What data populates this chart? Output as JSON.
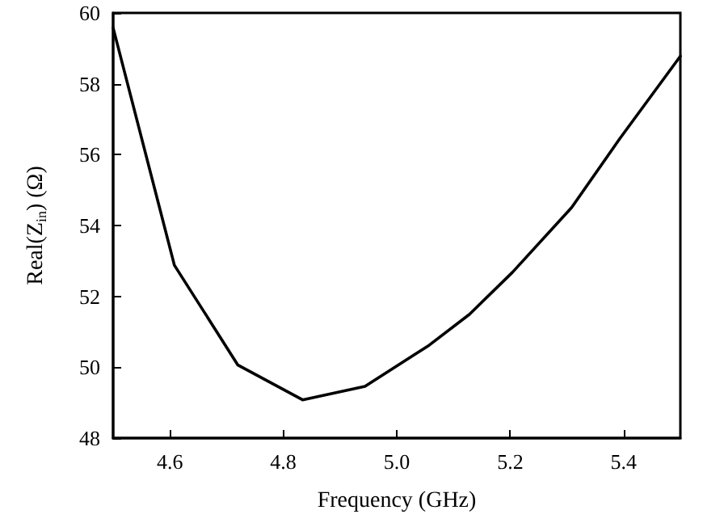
{
  "chart_data": {
    "type": "line",
    "xlabel": "Frequency (GHz)",
    "ylabel": "Real(Z$_{in}$) (Ω)",
    "x": [
      4.5,
      4.608,
      4.72,
      4.834,
      4.944,
      5.057,
      5.128,
      5.204,
      5.308,
      5.394,
      5.5
    ],
    "series": [
      {
        "color": "#000000",
        "values": [
          59.58,
          52.88,
          50.06,
          49.08,
          49.46,
          50.62,
          51.49,
          52.68,
          54.5,
          56.47,
          58.78
        ]
      }
    ],
    "xlim": [
      4.5,
      5.5
    ],
    "xticks": [
      4.6,
      4.8,
      {
        "value": 5,
        "label": "5.0"
      },
      5.2,
      5.4
    ],
    "ylim": [
      48,
      60
    ],
    "yticks": [
      48,
      50,
      52,
      54,
      56,
      58,
      60
    ],
    "grid": false,
    "marker": "none",
    "line_style": "solid"
  }
}
